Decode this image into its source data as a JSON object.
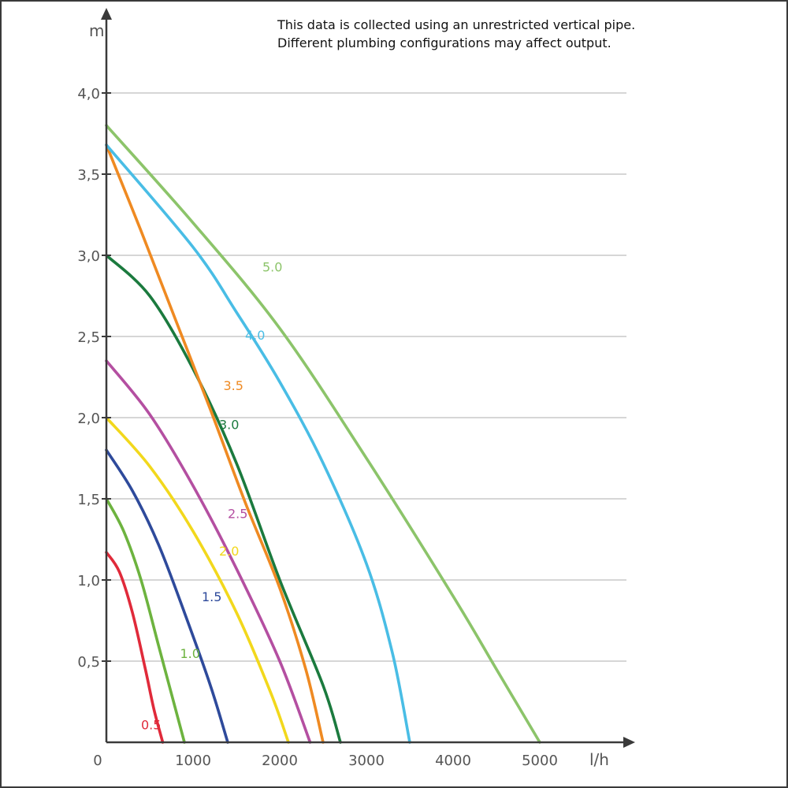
{
  "chart_data": {
    "type": "line",
    "title": "",
    "xlabel": "l/h",
    "ylabel": "m",
    "xlim": [
      0,
      6000
    ],
    "ylim": [
      0,
      4.0
    ],
    "x_ticks": [
      "0",
      "1000",
      "2000",
      "3000",
      "4000",
      "5000"
    ],
    "y_ticks": [
      "0,5",
      "1,0",
      "1,5",
      "2,0",
      "2,5",
      "3,0",
      "3,5",
      "4,0"
    ],
    "grid": "horizontal",
    "note": [
      "This data is collected using an unrestricted vertical pipe.",
      "Different plumbing configurations may affect output."
    ],
    "series": [
      {
        "name": "0.5",
        "color": "#e02a3a",
        "x": [
          0,
          150,
          300,
          450,
          550,
          650
        ],
        "y": [
          1.17,
          1.05,
          0.8,
          0.45,
          0.2,
          0
        ]
      },
      {
        "name": "1.0",
        "color": "#6db33f",
        "x": [
          0,
          200,
          400,
          600,
          800,
          900
        ],
        "y": [
          1.5,
          1.3,
          1.0,
          0.6,
          0.2,
          0
        ]
      },
      {
        "name": "1.5",
        "color": "#2e4a9b",
        "x": [
          0,
          300,
          600,
          900,
          1200,
          1400
        ],
        "y": [
          1.8,
          1.55,
          1.22,
          0.8,
          0.35,
          0
        ]
      },
      {
        "name": "2.0",
        "color": "#f2d81c",
        "x": [
          0,
          500,
          1000,
          1500,
          1900,
          2100
        ],
        "y": [
          2.0,
          1.7,
          1.3,
          0.8,
          0.3,
          0
        ]
      },
      {
        "name": "2.5",
        "color": "#b44fa1",
        "x": [
          0,
          500,
          1000,
          1500,
          2000,
          2350
        ],
        "y": [
          2.35,
          2.02,
          1.58,
          1.07,
          0.5,
          0
        ]
      },
      {
        "name": "3.0",
        "color": "#1b7a3e",
        "x": [
          0,
          500,
          1000,
          1500,
          2000,
          2500,
          2700
        ],
        "y": [
          3.0,
          2.75,
          2.3,
          1.72,
          1.0,
          0.35,
          0
        ]
      },
      {
        "name": "3.5",
        "color": "#ef8a22",
        "x": [
          0,
          400,
          800,
          1200,
          1600,
          2000,
          2300,
          2500
        ],
        "y": [
          3.68,
          3.15,
          2.6,
          2.05,
          1.48,
          0.95,
          0.45,
          0
        ]
      },
      {
        "name": "4.0",
        "color": "#49bde5",
        "x": [
          0,
          1000,
          1500,
          2000,
          2500,
          3000,
          3300,
          3500
        ],
        "y": [
          3.68,
          3.05,
          2.65,
          2.22,
          1.72,
          1.1,
          0.55,
          0
        ]
      },
      {
        "name": "5.0",
        "color": "#8cc46a",
        "x": [
          0,
          1000,
          2000,
          3000,
          4000,
          4500,
          5000
        ],
        "y": [
          3.8,
          3.2,
          2.55,
          1.75,
          0.9,
          0.45,
          0
        ]
      }
    ],
    "series_label_positions": [
      {
        "name": "0.5",
        "x": 400,
        "y": 0.08
      },
      {
        "name": "1.0",
        "x": 850,
        "y": 0.52
      },
      {
        "name": "1.5",
        "x": 1100,
        "y": 0.87
      },
      {
        "name": "2.0",
        "x": 1300,
        "y": 1.15
      },
      {
        "name": "2.5",
        "x": 1400,
        "y": 1.38
      },
      {
        "name": "3.0",
        "x": 1300,
        "y": 1.93
      },
      {
        "name": "3.5",
        "x": 1350,
        "y": 2.17
      },
      {
        "name": "4.0",
        "x": 1600,
        "y": 2.48
      },
      {
        "name": "5.0",
        "x": 1800,
        "y": 2.9
      }
    ]
  }
}
